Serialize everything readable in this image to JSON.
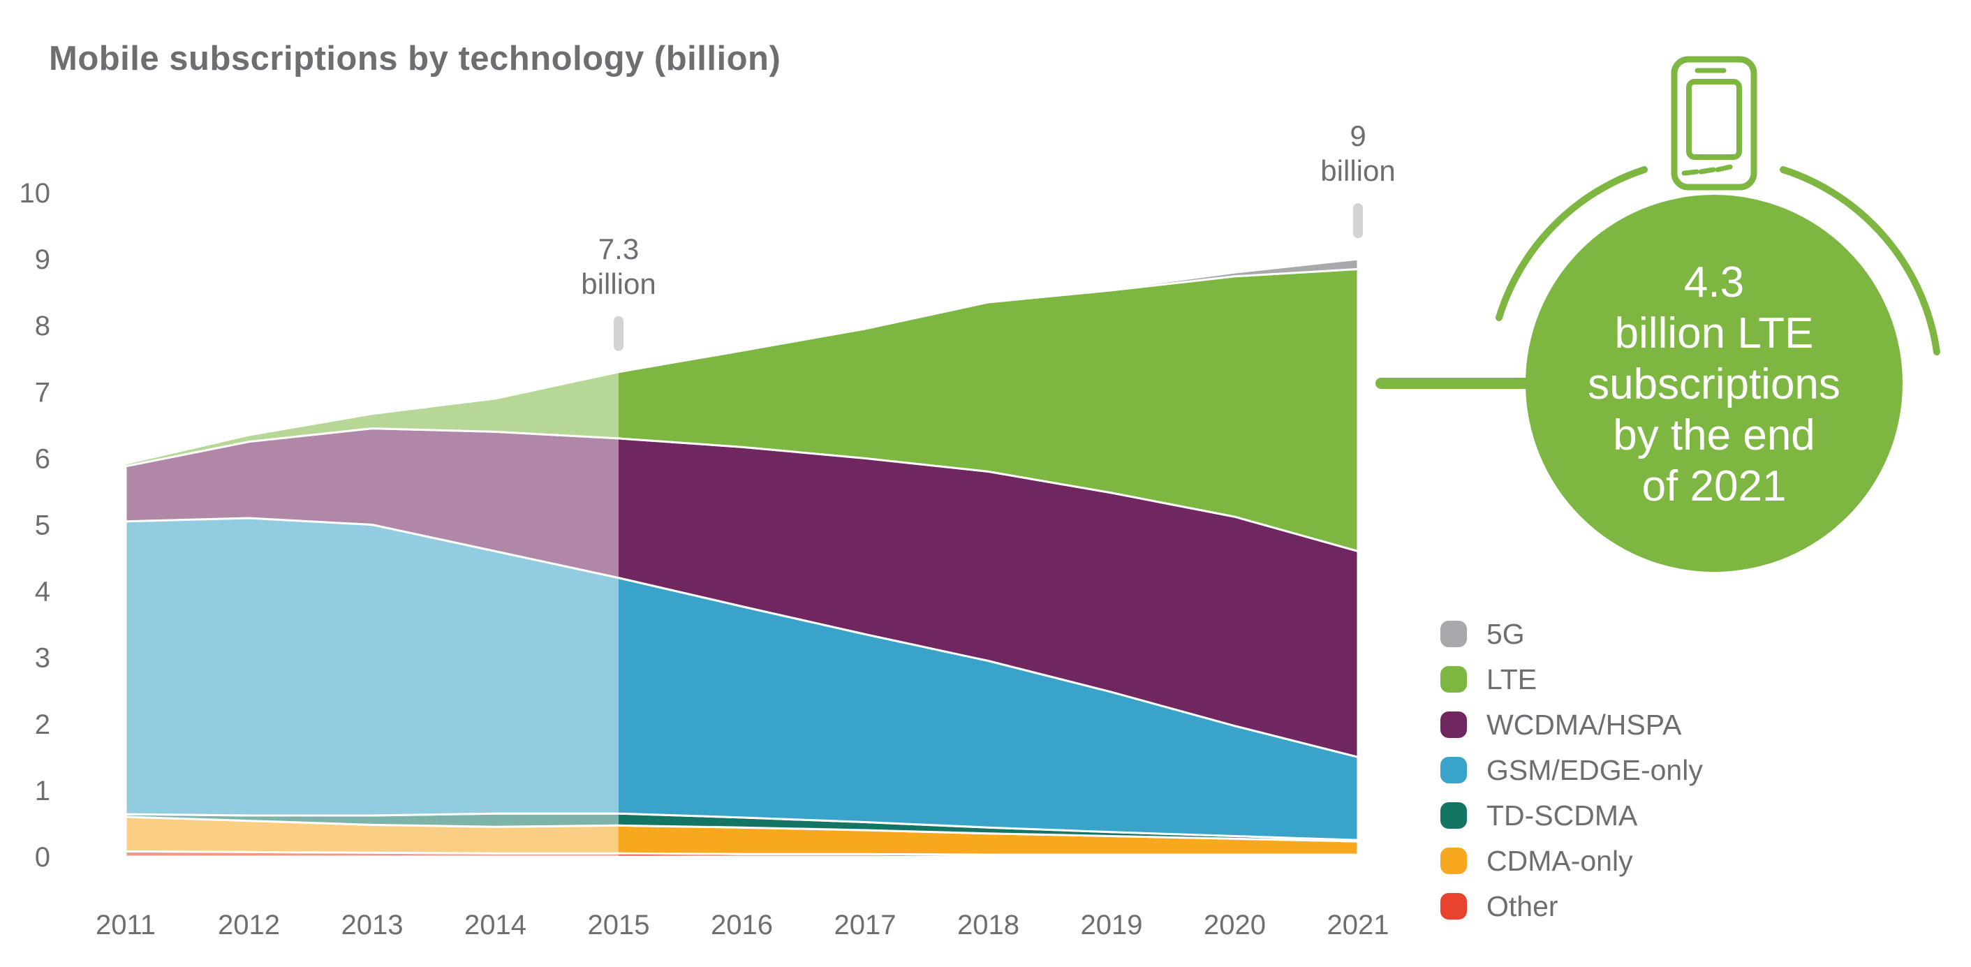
{
  "title": "Mobile subscriptions by technology (billion)",
  "colors": {
    "accent_green": "#7db742",
    "text_gray": "#6d6e71",
    "tick_gray": "#d2d3d4",
    "history_fade_overlay": "rgba(255,255,255,0.45)"
  },
  "chart_data": {
    "type": "area",
    "stacked": true,
    "title": "Mobile subscriptions by technology (billion)",
    "x": [
      2011,
      2012,
      2013,
      2014,
      2015,
      2016,
      2017,
      2018,
      2019,
      2020,
      2021
    ],
    "x_tick_labels": [
      "2011",
      "2012",
      "2013",
      "2014",
      "2015",
      "2016",
      "2017",
      "2018",
      "2019",
      "2020",
      "2021"
    ],
    "y_ticks": [
      0,
      1,
      2,
      3,
      4,
      5,
      6,
      7,
      8,
      9,
      10
    ],
    "ylim": [
      0,
      10
    ],
    "grid": false,
    "legend_position": "right",
    "history_fade": {
      "until_year": 2015,
      "note": "years 2011-2015 drawn in lighter faded colors"
    },
    "series": [
      {
        "name": "Other",
        "color": "#e8432e",
        "values": [
          0.08,
          0.07,
          0.06,
          0.05,
          0.05,
          0.04,
          0.04,
          0.03,
          0.03,
          0.03,
          0.03
        ]
      },
      {
        "name": "CDMA-only",
        "color": "#f7a81e",
        "values": [
          0.52,
          0.47,
          0.42,
          0.4,
          0.42,
          0.4,
          0.36,
          0.32,
          0.28,
          0.24,
          0.2
        ]
      },
      {
        "name": "TD-SCDMA",
        "color": "#157564",
        "values": [
          0.04,
          0.08,
          0.14,
          0.2,
          0.18,
          0.15,
          0.12,
          0.09,
          0.06,
          0.04,
          0.02
        ]
      },
      {
        "name": "GSM/EDGE-only",
        "color": "#3aa3c9",
        "values": [
          4.41,
          4.48,
          4.38,
          3.95,
          3.55,
          3.18,
          2.83,
          2.51,
          2.11,
          1.66,
          1.25
        ]
      },
      {
        "name": "WCDMA/HSPA",
        "color": "#70265e",
        "values": [
          0.83,
          1.15,
          1.45,
          1.8,
          2.1,
          2.4,
          2.65,
          2.85,
          3.0,
          3.15,
          3.1
        ]
      },
      {
        "name": "LTE",
        "color": "#7db742",
        "values": [
          0.04,
          0.1,
          0.22,
          0.5,
          1.0,
          1.45,
          1.95,
          2.55,
          3.05,
          3.62,
          4.25
        ]
      },
      {
        "name": "5G",
        "color": "#a7a9ac",
        "values": [
          0,
          0,
          0,
          0,
          0,
          0,
          0,
          0,
          0.02,
          0.06,
          0.15
        ]
      }
    ],
    "annotations": [
      {
        "year": 2015,
        "value": "7.3",
        "unit": "billion"
      },
      {
        "year": 2021,
        "value": "9",
        "unit": "billion"
      }
    ]
  },
  "legend": {
    "items": [
      {
        "label": "5G",
        "color": "#a7a9ac"
      },
      {
        "label": "LTE",
        "color": "#7db742"
      },
      {
        "label": "WCDMA/HSPA",
        "color": "#70265e"
      },
      {
        "label": "GSM/EDGE-only",
        "color": "#3aa3c9"
      },
      {
        "label": "TD-SCDMA",
        "color": "#157564"
      },
      {
        "label": "CDMA-only",
        "color": "#f7a81e"
      },
      {
        "label": "Other",
        "color": "#e8432e"
      }
    ]
  },
  "callout": {
    "lines": [
      "4.3",
      "billion LTE",
      "subscriptions",
      "by the end",
      "of 2021"
    ]
  }
}
